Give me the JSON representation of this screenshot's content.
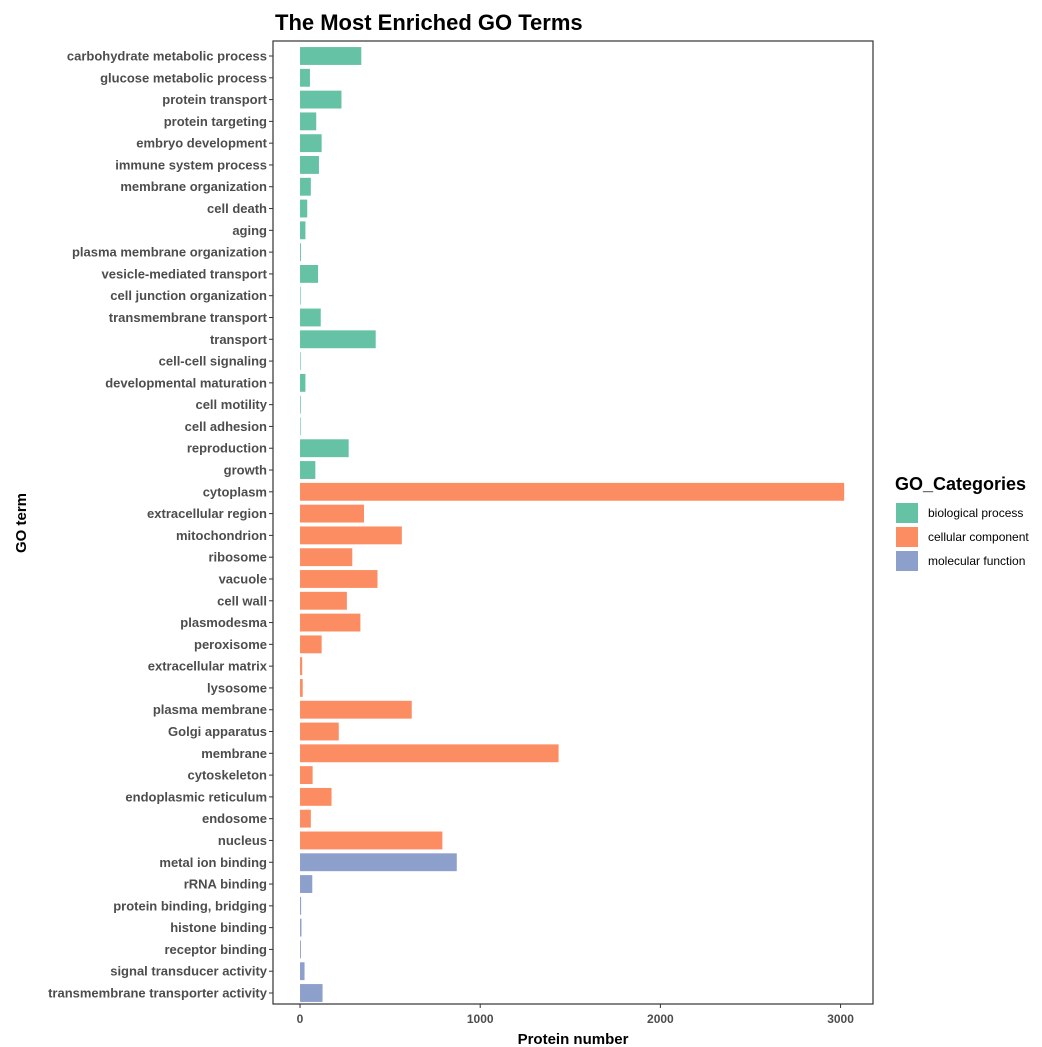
{
  "chart_data": {
    "type": "bar",
    "orientation": "horizontal",
    "title": "The Most Enriched GO Terms",
    "xlabel": "Protein number",
    "ylabel": "GO term",
    "xlim": [
      -150,
      3180
    ],
    "x_ticks": [
      0,
      1000,
      2000,
      3000
    ],
    "grid": false,
    "legend": {
      "title": "GO_Categories",
      "placement": "right",
      "entries": [
        {
          "name": "biological process",
          "color": "#66c2a5"
        },
        {
          "name": "cellular component",
          "color": "#fc8d62"
        },
        {
          "name": "molecular function",
          "color": "#8da0cb"
        }
      ]
    },
    "bars": [
      {
        "term": "carbohydrate metabolic process",
        "value": 340,
        "category": "biological process"
      },
      {
        "term": "glucose metabolic process",
        "value": 55,
        "category": "biological process"
      },
      {
        "term": "protein transport",
        "value": 230,
        "category": "biological process"
      },
      {
        "term": "protein targeting",
        "value": 90,
        "category": "biological process"
      },
      {
        "term": "embryo development",
        "value": 120,
        "category": "biological process"
      },
      {
        "term": "immune system process",
        "value": 105,
        "category": "biological process"
      },
      {
        "term": "membrane organization",
        "value": 60,
        "category": "biological process"
      },
      {
        "term": "cell death",
        "value": 40,
        "category": "biological process"
      },
      {
        "term": "aging",
        "value": 30,
        "category": "biological process"
      },
      {
        "term": "plasma membrane organization",
        "value": 5,
        "category": "biological process"
      },
      {
        "term": "vesicle-mediated transport",
        "value": 100,
        "category": "biological process"
      },
      {
        "term": "cell junction organization",
        "value": 0,
        "category": "biological process"
      },
      {
        "term": "transmembrane transport",
        "value": 115,
        "category": "biological process"
      },
      {
        "term": "transport",
        "value": 420,
        "category": "biological process"
      },
      {
        "term": "cell-cell signaling",
        "value": 0,
        "category": "biological process"
      },
      {
        "term": "developmental maturation",
        "value": 30,
        "category": "biological process"
      },
      {
        "term": "cell motility",
        "value": 4,
        "category": "biological process"
      },
      {
        "term": "cell adhesion",
        "value": 0,
        "category": "biological process"
      },
      {
        "term": "reproduction",
        "value": 270,
        "category": "biological process"
      },
      {
        "term": "growth",
        "value": 85,
        "category": "biological process"
      },
      {
        "term": "cytoplasm",
        "value": 3020,
        "category": "cellular component"
      },
      {
        "term": "extracellular region",
        "value": 355,
        "category": "cellular component"
      },
      {
        "term": "mitochondrion",
        "value": 565,
        "category": "cellular component"
      },
      {
        "term": "ribosome",
        "value": 290,
        "category": "cellular component"
      },
      {
        "term": "vacuole",
        "value": 430,
        "category": "cellular component"
      },
      {
        "term": "cell wall",
        "value": 260,
        "category": "cellular component"
      },
      {
        "term": "plasmodesma",
        "value": 335,
        "category": "cellular component"
      },
      {
        "term": "peroxisome",
        "value": 120,
        "category": "cellular component"
      },
      {
        "term": "extracellular matrix",
        "value": 12,
        "category": "cellular component"
      },
      {
        "term": "lysosome",
        "value": 15,
        "category": "cellular component"
      },
      {
        "term": "plasma membrane",
        "value": 620,
        "category": "cellular component"
      },
      {
        "term": "Golgi apparatus",
        "value": 215,
        "category": "cellular component"
      },
      {
        "term": "membrane",
        "value": 1435,
        "category": "cellular component"
      },
      {
        "term": "cytoskeleton",
        "value": 70,
        "category": "cellular component"
      },
      {
        "term": "endoplasmic reticulum",
        "value": 175,
        "category": "cellular component"
      },
      {
        "term": "endosome",
        "value": 60,
        "category": "cellular component"
      },
      {
        "term": "nucleus",
        "value": 790,
        "category": "cellular component"
      },
      {
        "term": "metal ion binding",
        "value": 870,
        "category": "molecular function"
      },
      {
        "term": "rRNA binding",
        "value": 68,
        "category": "molecular function"
      },
      {
        "term": "protein binding, bridging",
        "value": 6,
        "category": "molecular function"
      },
      {
        "term": "histone binding",
        "value": 8,
        "category": "molecular function"
      },
      {
        "term": "receptor binding",
        "value": 5,
        "category": "molecular function"
      },
      {
        "term": "signal transducer activity",
        "value": 25,
        "category": "molecular function"
      },
      {
        "term": "transmembrane transporter activity",
        "value": 125,
        "category": "molecular function"
      }
    ]
  }
}
